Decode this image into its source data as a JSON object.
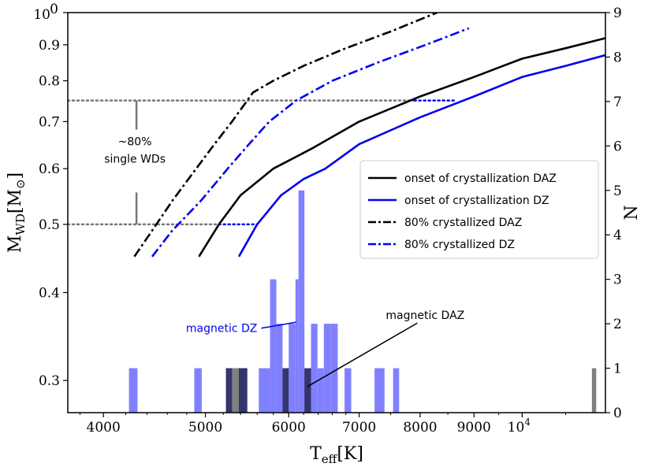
{
  "chart_data": {
    "type": "line",
    "x_axis": {
      "label_main": "T",
      "label_sub": "eff",
      "label_unit": "[K]",
      "scale": "log",
      "range": [
        3700,
        12000
      ],
      "ticks": [
        {
          "value": 4000,
          "label": "4000"
        },
        {
          "value": 5000,
          "label": "5000"
        },
        {
          "value": 6000,
          "label": "6000"
        },
        {
          "value": 7000,
          "label": "7000"
        },
        {
          "value": 8000,
          "label": "8000"
        },
        {
          "value": 9000,
          "label": "9000"
        }
      ],
      "special_tick": {
        "value": 10000,
        "base": "10",
        "exp": "4"
      }
    },
    "y_axis_left": {
      "label_main": "M",
      "label_sub": "WD",
      "label_unit_open": "[M",
      "label_unit_sym": "⊙",
      "label_unit_close": "]",
      "scale": "log",
      "range": [
        0.27,
        1.0
      ],
      "ticks": [
        {
          "value": 0.3,
          "label": "0.3"
        },
        {
          "value": 0.4,
          "label": "0.4"
        },
        {
          "value": 0.5,
          "label": "0.5"
        },
        {
          "value": 0.6,
          "label": "0.6"
        },
        {
          "value": 0.7,
          "label": "0.7"
        },
        {
          "value": 0.8,
          "label": "0.8"
        },
        {
          "value": 0.9,
          "label": "0.9"
        }
      ],
      "top_tick": {
        "value": 1.0,
        "base": "10",
        "exp": "0"
      }
    },
    "y_axis_right": {
      "label": "N",
      "range": [
        0,
        9
      ],
      "ticks": [
        "0",
        "1",
        "2",
        "3",
        "4",
        "5",
        "6",
        "7",
        "8",
        "9"
      ]
    },
    "series": [
      {
        "name": "onset of crystallization DAZ",
        "color": "#000000",
        "dash": "solid",
        "points": [
          [
            4930,
            0.45
          ],
          [
            5150,
            0.5
          ],
          [
            5400,
            0.55
          ],
          [
            5800,
            0.6
          ],
          [
            6300,
            0.64
          ],
          [
            7000,
            0.7
          ],
          [
            8000,
            0.76
          ],
          [
            9000,
            0.81
          ],
          [
            10000,
            0.86
          ],
          [
            11000,
            0.89
          ],
          [
            12000,
            0.92
          ]
        ]
      },
      {
        "name": "onset of crystallization DZ",
        "color": "#0000ee",
        "dash": "solid",
        "points": [
          [
            5380,
            0.45
          ],
          [
            5600,
            0.5
          ],
          [
            5900,
            0.55
          ],
          [
            6200,
            0.58
          ],
          [
            6500,
            0.6
          ],
          [
            7000,
            0.65
          ],
          [
            8000,
            0.71
          ],
          [
            9000,
            0.76
          ],
          [
            10000,
            0.81
          ],
          [
            11000,
            0.84
          ],
          [
            12000,
            0.87
          ]
        ]
      },
      {
        "name": "80% crystallized DAZ",
        "color": "#000000",
        "dash": "dashdot",
        "points": [
          [
            4280,
            0.45
          ],
          [
            4450,
            0.49
          ],
          [
            4650,
            0.54
          ],
          [
            4900,
            0.6
          ],
          [
            5100,
            0.65
          ],
          [
            5300,
            0.7
          ],
          [
            5550,
            0.77
          ],
          [
            5800,
            0.8
          ],
          [
            6200,
            0.84
          ],
          [
            6800,
            0.89
          ],
          [
            7500,
            0.94
          ],
          [
            8300,
            1.0
          ]
        ]
      },
      {
        "name": "80% crystallized DZ",
        "color": "#0000ee",
        "dash": "dashdot",
        "points": [
          [
            4450,
            0.45
          ],
          [
            4650,
            0.49
          ],
          [
            4950,
            0.54
          ],
          [
            5250,
            0.6
          ],
          [
            5500,
            0.65
          ],
          [
            5750,
            0.7
          ],
          [
            6100,
            0.75
          ],
          [
            6600,
            0.8
          ],
          [
            7300,
            0.85
          ],
          [
            8100,
            0.9
          ],
          [
            8900,
            0.95
          ]
        ]
      }
    ],
    "reference_lines": [
      {
        "y": 0.5,
        "x_from": 3700,
        "x_to": 5150,
        "color": "#777777",
        "style": "dotted"
      },
      {
        "y": 0.5,
        "x_from": 5150,
        "x_to": 5600,
        "color": "#0000ee",
        "style": "dotted"
      },
      {
        "y": 0.75,
        "x_from": 3700,
        "x_to": 7900,
        "color": "#777777",
        "style": "dotted"
      },
      {
        "y": 0.75,
        "x_from": 7900,
        "x_to": 8650,
        "color": "#0000ee",
        "style": "dotted"
      }
    ],
    "bracket": {
      "x": 4300,
      "y_low": 0.5,
      "y_high": 0.75,
      "gap_low": 0.555,
      "gap_high": 0.682
    },
    "histogram_DZ": {
      "color": "#8080ff",
      "bins": [
        {
          "from": 4230,
          "to": 4310,
          "n": 1
        },
        {
          "from": 4880,
          "to": 4960,
          "n": 1
        },
        {
          "from": 5230,
          "to": 5480,
          "n": 1
        },
        {
          "from": 5620,
          "to": 5760,
          "n": 1
        },
        {
          "from": 5760,
          "to": 5840,
          "n": 3
        },
        {
          "from": 5840,
          "to": 5920,
          "n": 2
        },
        {
          "from": 5920,
          "to": 6000,
          "n": 1
        },
        {
          "from": 6000,
          "to": 6090,
          "n": 2
        },
        {
          "from": 6090,
          "to": 6130,
          "n": 3
        },
        {
          "from": 6130,
          "to": 6210,
          "n": 5
        },
        {
          "from": 6210,
          "to": 6300,
          "n": 1
        },
        {
          "from": 6300,
          "to": 6390,
          "n": 2
        },
        {
          "from": 6390,
          "to": 6480,
          "n": 1
        },
        {
          "from": 6480,
          "to": 6580,
          "n": 2
        },
        {
          "from": 6580,
          "to": 6680,
          "n": 2
        },
        {
          "from": 6780,
          "to": 6880,
          "n": 1
        },
        {
          "from": 7240,
          "to": 7400,
          "n": 1
        },
        {
          "from": 7540,
          "to": 7640,
          "n": 1
        }
      ]
    },
    "histogram_DAZ": {
      "color": "#808080",
      "bins": [
        {
          "from": 5300,
          "to": 5380,
          "n": 1
        },
        {
          "from": 11650,
          "to": 11760,
          "n": 1
        }
      ]
    },
    "overlap_bins": {
      "color": "#35356b",
      "bins": [
        {
          "from": 5230,
          "to": 5300,
          "n": 1
        },
        {
          "from": 5380,
          "to": 5480,
          "n": 1
        },
        {
          "from": 5920,
          "to": 6000,
          "n": 1
        },
        {
          "from": 6210,
          "to": 6300,
          "n": 1
        }
      ]
    },
    "annotations": {
      "bracket_line1": "~80%",
      "bracket_line2": "single WDs",
      "magnetic_dz": "magnetic DZ",
      "magnetic_daz": "magnetic DAZ",
      "magnetic_dz_color": "#0000ee",
      "magnetic_daz_color": "#000000",
      "dz_pointer": {
        "from": [
          5650,
          0.356
        ],
        "to": [
          6100,
          0.363
        ]
      },
      "daz_pointer": {
        "from": [
          7950,
          0.362
        ],
        "to": [
          6250,
          0.294
        ]
      }
    },
    "legend": {
      "position": "center-right",
      "entries": [
        {
          "label": "onset of crystallization DAZ",
          "color": "#000000",
          "dash": "solid"
        },
        {
          "label": "onset of crystallization DZ",
          "color": "#0000ee",
          "dash": "solid"
        },
        {
          "label": "80% crystallized DAZ",
          "color": "#000000",
          "dash": "dashdot"
        },
        {
          "label": "80% crystallized DZ",
          "color": "#0000ee",
          "dash": "dashdot"
        }
      ]
    }
  }
}
